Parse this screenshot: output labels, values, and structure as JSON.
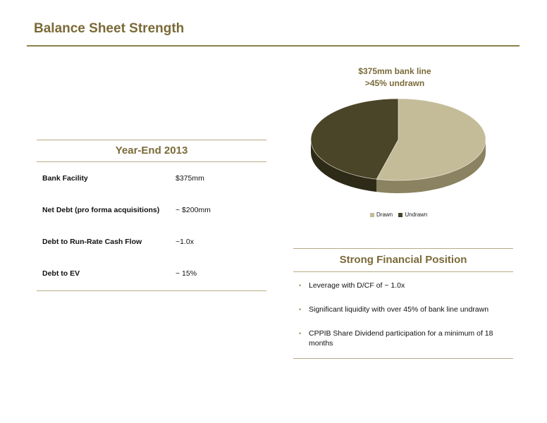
{
  "page": {
    "title": "Balance Sheet Strength"
  },
  "year_end": {
    "header": "Year-End 2013",
    "rows": [
      {
        "label": "Bank Facility",
        "value": "$375mm"
      },
      {
        "label": "Net Debt (pro forma acquisitions)",
        "value": "~ $200mm"
      },
      {
        "label": "Debt to Run-Rate Cash Flow",
        "value": "~1.0x"
      },
      {
        "label": "Debt to EV",
        "value": "~ 15%"
      }
    ]
  },
  "chart_data": {
    "type": "pie",
    "title": "$375mm bank line",
    "subtitle": ">45% undrawn",
    "categories": [
      "Drawn",
      "Undrawn"
    ],
    "values": [
      54,
      46
    ],
    "colors": [
      "#c4bc98",
      "#4a4428"
    ],
    "side_colors": [
      "#8a8260",
      "#2e2a18"
    ],
    "legend_position": "bottom"
  },
  "strong_position": {
    "header": "Strong Financial Position",
    "bullets": [
      "Leverage with D/CF of ~ 1.0x",
      "Significant liquidity with over 45% of bank line undrawn",
      "CPPIB Share Dividend participation for a minimum of 18 months"
    ],
    "bullet_color": "#9c8d58"
  },
  "colors": {
    "accent": "#7a6a38",
    "rule": "#b7ab86"
  }
}
